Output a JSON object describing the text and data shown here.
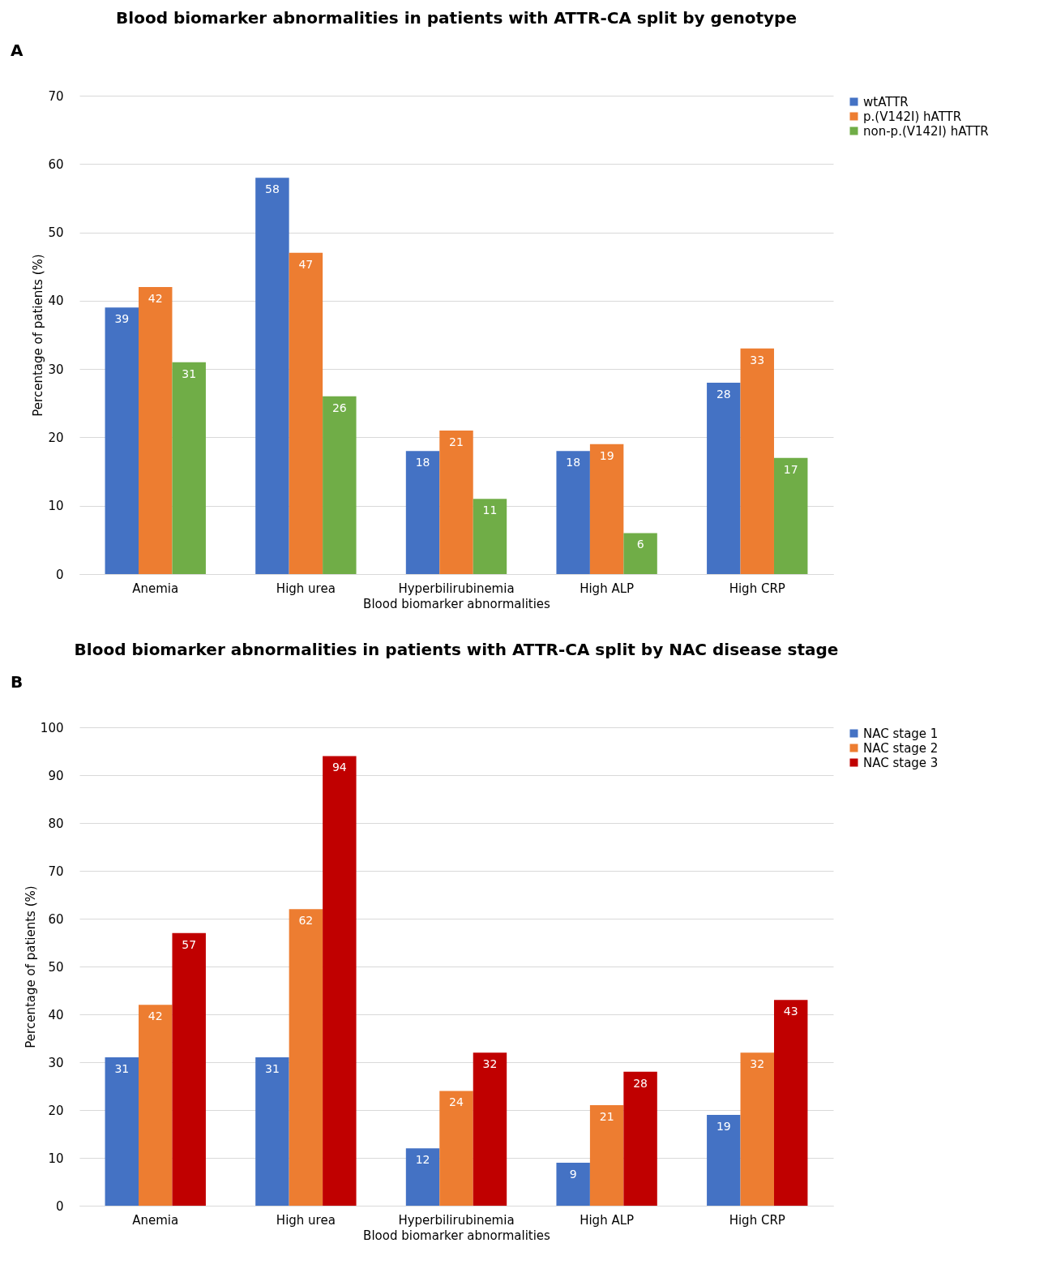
{
  "chart_data": [
    {
      "type": "bar",
      "title": "Blood biomarker abnormalities in patients with ATTR-CA split by genotype",
      "xlabel": "Blood biomarker abnormalities",
      "ylabel": "Percentage of patients (%)",
      "annotations": [
        "A"
      ],
      "categories": [
        "Anemia",
        "High urea",
        "Hyperbilirubinemia",
        "High ALP",
        "High CRP"
      ],
      "series": [
        {
          "name": "wtATTR",
          "color": "#4472c4",
          "values": [
            39,
            58,
            18,
            18,
            28
          ]
        },
        {
          "name": "p.(V142I) hATTR",
          "color": "#ed7d31",
          "values": [
            42,
            47,
            21,
            19,
            33
          ]
        },
        {
          "name": "non-p.(V142I) hATTR",
          "color": "#70ad47",
          "values": [
            31,
            26,
            11,
            6,
            17
          ]
        }
      ],
      "ylim": [
        0,
        70
      ],
      "yticks": [
        0,
        10,
        20,
        30,
        40,
        50,
        60,
        70
      ],
      "grid": "y",
      "legend": "right",
      "data_labels": true
    },
    {
      "type": "bar",
      "title": "Blood biomarker abnormalities in patients with ATTR-CA split by NAC disease stage",
      "xlabel": "Blood biomarker abnormalities",
      "ylabel": "Percentage of patients (%)",
      "annotations": [
        "B"
      ],
      "categories": [
        "Anemia",
        "High urea",
        "Hyperbilirubinemia",
        "High ALP",
        "High CRP"
      ],
      "series": [
        {
          "name": "NAC stage 1",
          "color": "#4472c4",
          "values": [
            31,
            31,
            12,
            9,
            19
          ]
        },
        {
          "name": "NAC stage 2",
          "color": "#ed7d31",
          "values": [
            42,
            62,
            24,
            21,
            32
          ]
        },
        {
          "name": "NAC stage 3",
          "color": "#c00000",
          "values": [
            57,
            94,
            32,
            28,
            43
          ]
        }
      ],
      "ylim": [
        0,
        100
      ],
      "yticks": [
        0,
        10,
        20,
        30,
        40,
        50,
        60,
        70,
        80,
        90,
        100
      ],
      "grid": "y",
      "legend": "right",
      "data_labels": true
    }
  ]
}
